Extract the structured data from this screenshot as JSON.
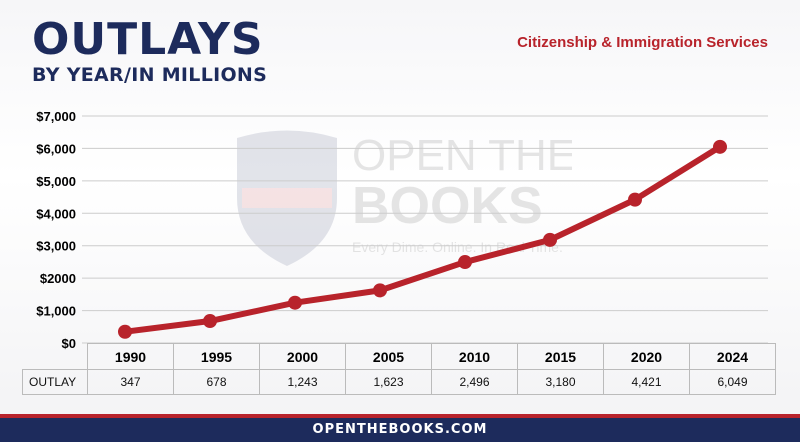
{
  "header": {
    "title": "OUTLAYS",
    "subtitle": "BY YEAR/IN MILLIONS",
    "agency": "Citizenship & Immigration Services"
  },
  "watermark": {
    "line1": "OPEN THE",
    "line2": "BOOKS",
    "tagline": "Every Dime. Online. In Real Time."
  },
  "footer": {
    "url": "OPENTHEBOOKS.COM"
  },
  "colors": {
    "navy": "#1d2b5c",
    "red": "#b8232b",
    "grid": "#cccccc"
  },
  "table": {
    "row_label": "OUTLAY"
  },
  "chart_data": {
    "type": "line",
    "title": "OUTLAYS",
    "subtitle": "BY YEAR/IN MILLIONS",
    "categories": [
      "1990",
      "1995",
      "2000",
      "2005",
      "2010",
      "2015",
      "2020",
      "2024"
    ],
    "values": [
      347,
      678,
      1243,
      1623,
      2496,
      3180,
      4421,
      6049
    ],
    "value_labels": [
      "347",
      "678",
      "1,243",
      "1,623",
      "2,496",
      "3,180",
      "4,421",
      "6,049"
    ],
    "ytick_labels": [
      "$0",
      "$1,000",
      "$2000",
      "$3,000",
      "$4,000",
      "$5,000",
      "$6,000",
      "$7,000"
    ],
    "ylim": [
      0,
      7000
    ],
    "grid": true,
    "legend": "none"
  }
}
